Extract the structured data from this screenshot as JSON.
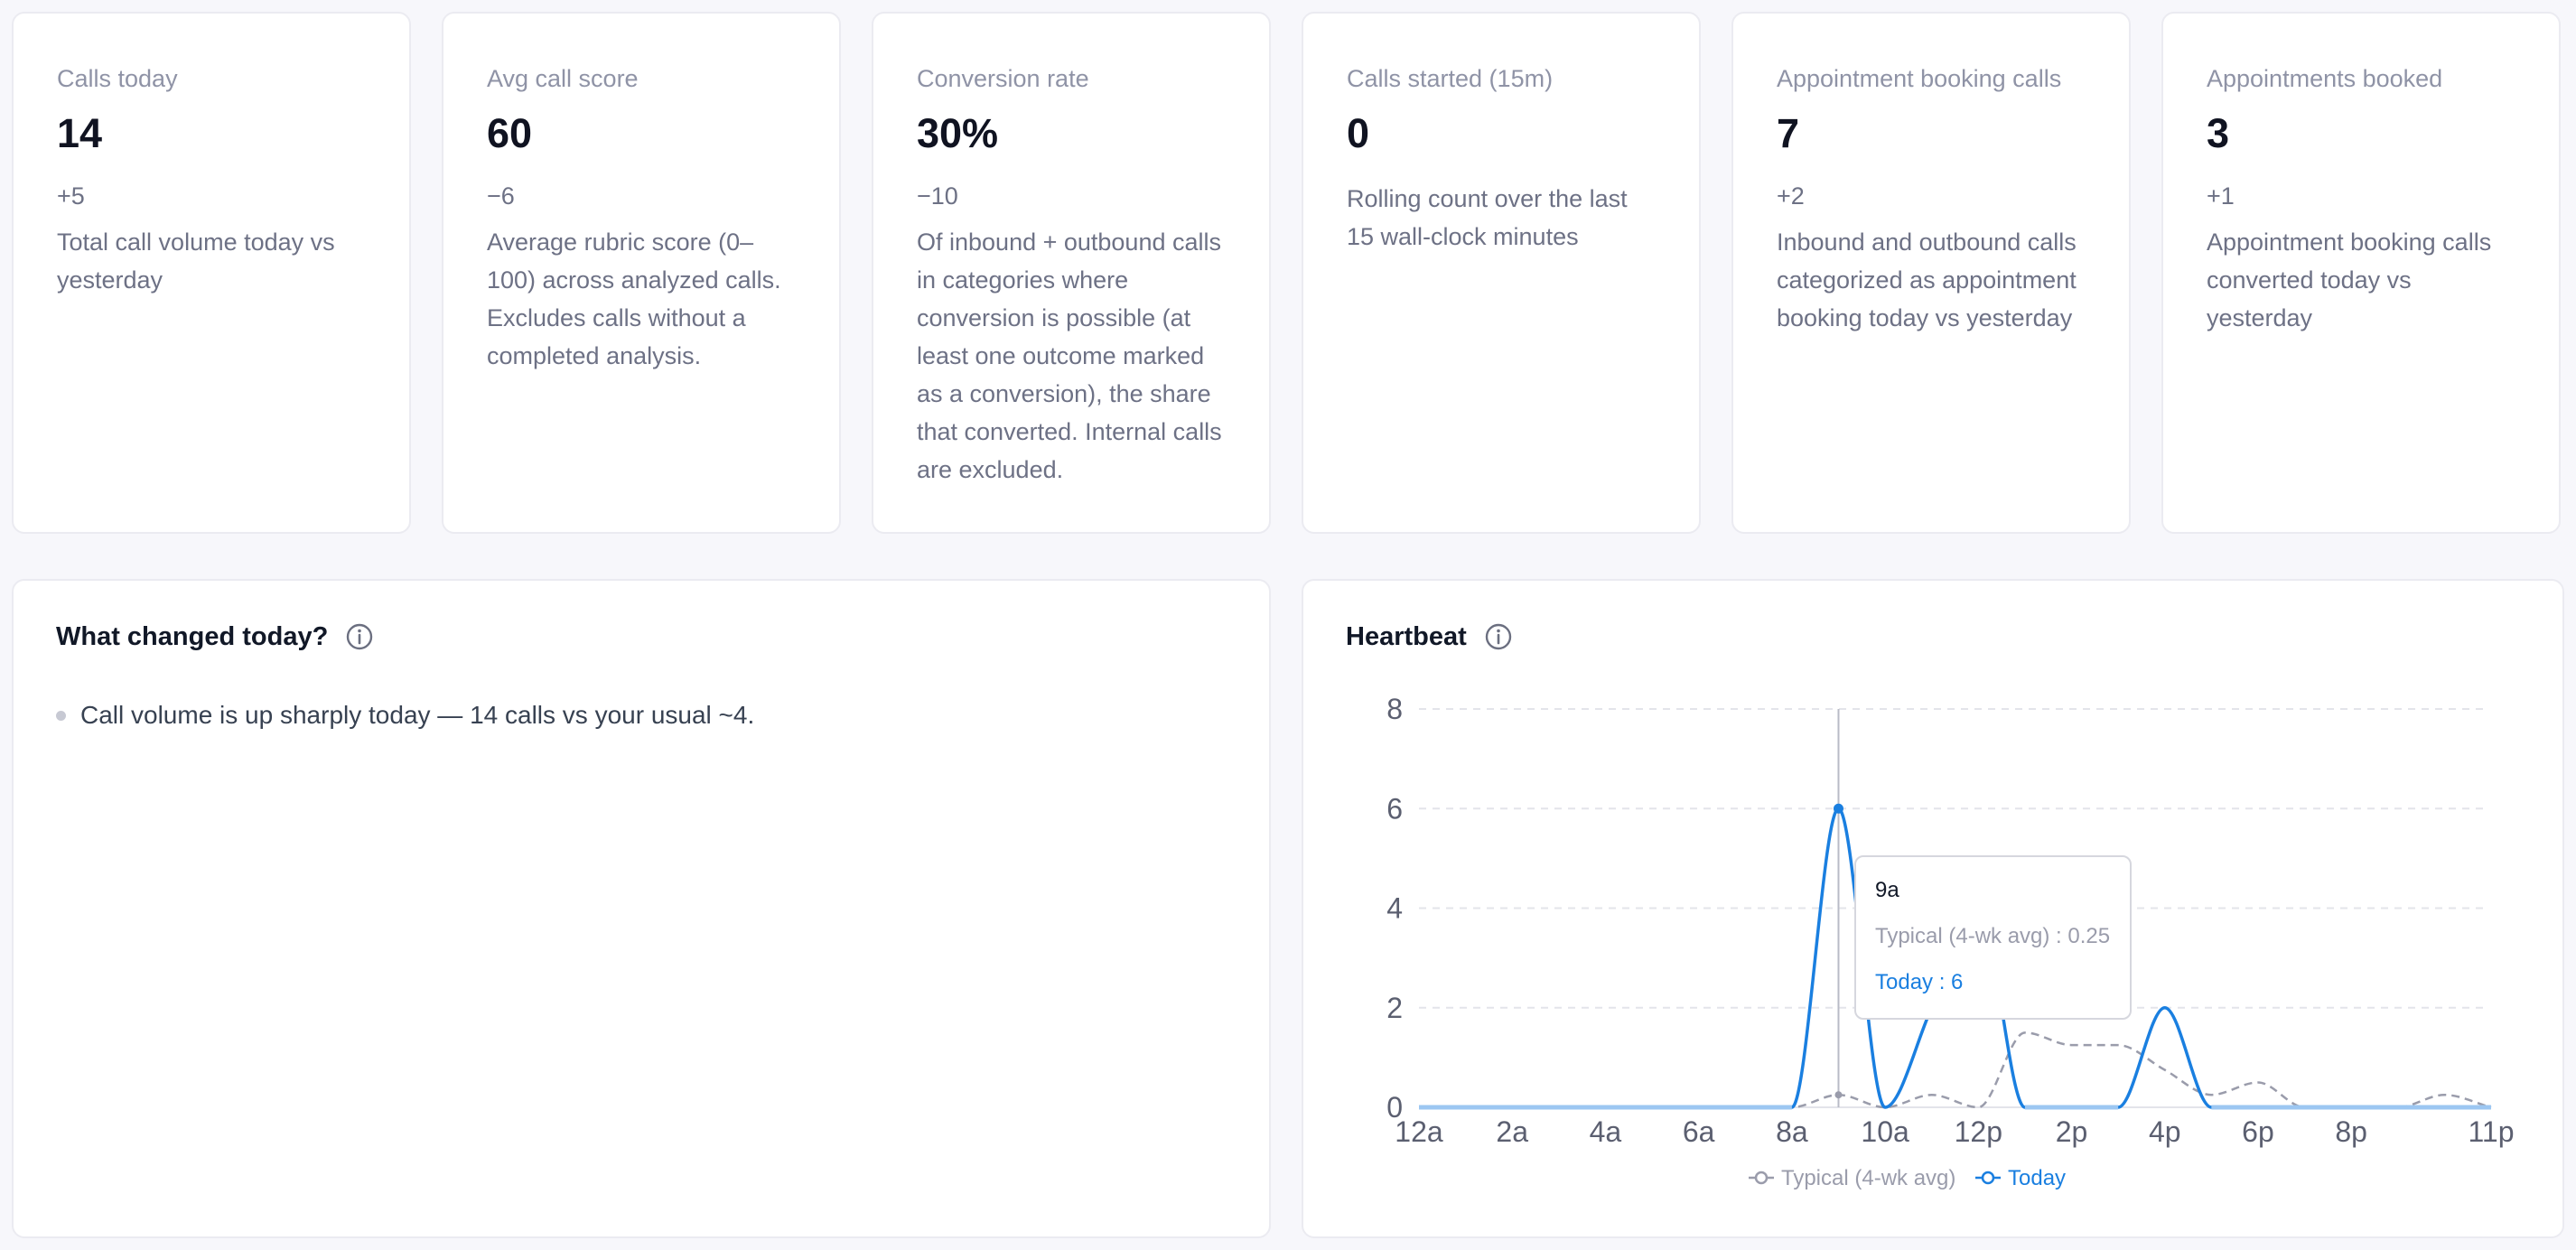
{
  "kpis": [
    {
      "label": "Calls today",
      "value": "14",
      "delta": "+5",
      "description": "Total call volume today vs yesterday"
    },
    {
      "label": "Avg call score",
      "value": "60",
      "delta": "−6",
      "description": "Average rubric score (0–100) across analyzed calls. Excludes calls without a completed analysis."
    },
    {
      "label": "Conversion rate",
      "value": "30%",
      "delta": "−10",
      "description": "Of inbound + outbound calls in categories where conversion is possible (at least one outcome marked as a conversion), the share that converted. Internal calls are excluded."
    },
    {
      "label": "Calls started (15m)",
      "value": "0",
      "delta": "",
      "description": "Rolling count over the last 15 wall-clock minutes"
    },
    {
      "label": "Appointment booking calls",
      "value": "7",
      "delta": "+2",
      "description": "Inbound and outbound calls categorized as appointment booking today vs yesterday"
    },
    {
      "label": "Appointments booked",
      "value": "3",
      "delta": "+1",
      "description": "Appointment booking calls converted today vs yesterday"
    }
  ],
  "changes": {
    "title": "What changed today?",
    "info_icon": "info-icon",
    "items": [
      "Call volume is up sharply today — 14 calls vs your usual ~4."
    ]
  },
  "heartbeat": {
    "title": "Heartbeat",
    "info_icon": "info-icon",
    "tooltip": {
      "hour": "9a",
      "typical_label": "Typical (4-wk avg) : 0.25",
      "today_label": "Today : 6"
    },
    "legend": {
      "typical": "Typical (4-wk avg)",
      "today": "Today"
    }
  },
  "chart_data": {
    "type": "line",
    "title": "Heartbeat",
    "xlabel": "",
    "ylabel": "",
    "x": [
      0,
      1,
      2,
      3,
      4,
      5,
      6,
      7,
      8,
      9,
      10,
      11,
      12,
      13,
      14,
      15,
      16,
      17,
      18,
      19,
      20,
      21,
      22,
      23
    ],
    "x_tick_labels": [
      "12a",
      "2a",
      "4a",
      "6a",
      "8a",
      "10a",
      "12p",
      "2p",
      "4p",
      "6p",
      "8p",
      "11p"
    ],
    "x_tick_hours": [
      0,
      2,
      4,
      6,
      8,
      10,
      12,
      14,
      16,
      18,
      20,
      23
    ],
    "ylim": [
      0,
      8
    ],
    "y_ticks": [
      0,
      2,
      4,
      6,
      8
    ],
    "grid": true,
    "legend_position": "bottom",
    "series": [
      {
        "name": "Typical (4-wk avg)",
        "color": "#9a9cab",
        "dashed": true,
        "values": [
          0,
          0,
          0,
          0,
          0,
          0,
          0,
          0,
          0,
          0.25,
          0,
          0.25,
          0,
          1.5,
          1.25,
          1.25,
          0.75,
          0.25,
          0.5,
          0,
          0,
          0,
          0.25,
          0
        ]
      },
      {
        "name": "Today",
        "color": "#1a7fe0",
        "dashed": false,
        "values": [
          0,
          0,
          0,
          0,
          0,
          0,
          0,
          0,
          0,
          6,
          0,
          2,
          4,
          0,
          0,
          0,
          2,
          0,
          0,
          0,
          0,
          0,
          0,
          0
        ]
      }
    ],
    "highlight_hour": 9,
    "colors": {
      "today": "#1a7fe0",
      "typical": "#9a9cab",
      "grid": "#e3e4ea"
    }
  }
}
